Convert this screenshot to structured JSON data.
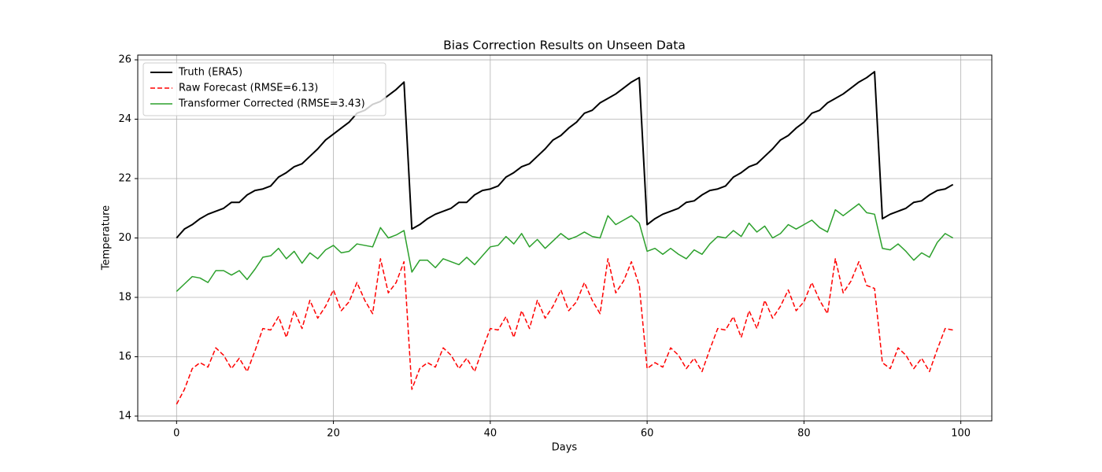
{
  "chart_data": {
    "type": "line",
    "title": "Bias Correction Results on Unseen Data",
    "xlabel": "Days",
    "ylabel": "Temperature",
    "x": [
      0,
      1,
      2,
      3,
      4,
      5,
      6,
      7,
      8,
      9,
      10,
      11,
      12,
      13,
      14,
      15,
      16,
      17,
      18,
      19,
      20,
      21,
      22,
      23,
      24,
      25,
      26,
      27,
      28,
      29,
      30,
      31,
      32,
      33,
      34,
      35,
      36,
      37,
      38,
      39,
      40,
      41,
      42,
      43,
      44,
      45,
      46,
      47,
      48,
      49,
      50,
      51,
      52,
      53,
      54,
      55,
      56,
      57,
      58,
      59,
      60,
      61,
      62,
      63,
      64,
      65,
      66,
      67,
      68,
      69,
      70,
      71,
      72,
      73,
      74,
      75,
      76,
      77,
      78,
      79,
      80,
      81,
      82,
      83,
      84,
      85,
      86,
      87,
      88,
      89,
      90,
      91,
      92,
      93,
      94,
      95,
      96,
      97,
      98,
      99
    ],
    "series": [
      {
        "name": "Truth (ERA5)",
        "color": "#000000",
        "linestyle": "solid",
        "linewidth": 2,
        "values": [
          20.0,
          20.3,
          20.45,
          20.65,
          20.8,
          20.9,
          21.0,
          21.2,
          21.2,
          21.45,
          21.6,
          21.65,
          21.75,
          22.05,
          22.2,
          22.4,
          22.5,
          22.75,
          23.0,
          23.3,
          23.5,
          23.7,
          23.9,
          24.2,
          24.3,
          24.5,
          24.6,
          24.8,
          25.0,
          25.25,
          20.3,
          20.45,
          20.65,
          20.8,
          20.9,
          21.0,
          21.2,
          21.2,
          21.45,
          21.6,
          21.65,
          21.75,
          22.05,
          22.2,
          22.4,
          22.5,
          22.75,
          23.0,
          23.3,
          23.45,
          23.7,
          23.9,
          24.2,
          24.3,
          24.55,
          24.7,
          24.85,
          25.05,
          25.25,
          25.4,
          20.45,
          20.65,
          20.8,
          20.9,
          21.0,
          21.2,
          21.25,
          21.45,
          21.6,
          21.65,
          21.75,
          22.05,
          22.2,
          22.4,
          22.5,
          22.75,
          23.0,
          23.3,
          23.45,
          23.7,
          23.9,
          24.2,
          24.3,
          24.55,
          24.7,
          24.85,
          25.05,
          25.25,
          25.4,
          25.6,
          20.65,
          20.8,
          20.9,
          21.0,
          21.2,
          21.25,
          21.45,
          21.6,
          21.65,
          21.8
        ]
      },
      {
        "name": "Raw Forecast (RMSE=6.13)",
        "color": "#ff0000",
        "linestyle": "dashed",
        "linewidth": 1.5,
        "values": [
          14.4,
          14.9,
          15.6,
          15.8,
          15.65,
          16.3,
          16.05,
          15.6,
          15.95,
          15.5,
          16.2,
          16.95,
          16.9,
          17.35,
          16.65,
          17.55,
          16.95,
          17.9,
          17.3,
          17.7,
          18.25,
          17.55,
          17.85,
          18.5,
          17.9,
          17.45,
          19.3,
          18.15,
          18.5,
          19.2,
          14.9,
          15.6,
          15.8,
          15.65,
          16.3,
          16.05,
          15.6,
          15.95,
          15.5,
          16.25,
          16.95,
          16.9,
          17.35,
          16.65,
          17.55,
          16.95,
          17.9,
          17.3,
          17.7,
          18.25,
          17.55,
          17.85,
          18.5,
          17.9,
          17.45,
          19.3,
          18.15,
          18.55,
          19.2,
          18.4,
          15.6,
          15.8,
          15.65,
          16.3,
          16.05,
          15.6,
          15.95,
          15.5,
          16.25,
          16.95,
          16.9,
          17.35,
          16.65,
          17.55,
          16.95,
          17.9,
          17.3,
          17.7,
          18.25,
          17.55,
          17.85,
          18.5,
          17.9,
          17.45,
          19.3,
          18.15,
          18.55,
          19.2,
          18.4,
          18.3,
          15.8,
          15.6,
          16.3,
          16.05,
          15.6,
          15.95,
          15.5,
          16.25,
          16.95,
          16.9
        ]
      },
      {
        "name": "Transformer Corrected (RMSE=3.43)",
        "color": "#2ca02c",
        "linestyle": "solid",
        "linewidth": 1.5,
        "values": [
          18.2,
          18.45,
          18.7,
          18.65,
          18.5,
          18.9,
          18.9,
          18.75,
          18.9,
          18.6,
          18.95,
          19.35,
          19.4,
          19.65,
          19.3,
          19.55,
          19.15,
          19.5,
          19.3,
          19.6,
          19.75,
          19.5,
          19.55,
          19.8,
          19.75,
          19.7,
          20.35,
          20.0,
          20.1,
          20.25,
          18.85,
          19.25,
          19.25,
          19.0,
          19.3,
          19.2,
          19.1,
          19.35,
          19.1,
          19.4,
          19.7,
          19.75,
          20.05,
          19.8,
          20.15,
          19.7,
          19.95,
          19.65,
          19.9,
          20.15,
          19.95,
          20.05,
          20.2,
          20.05,
          20.0,
          20.75,
          20.45,
          20.6,
          20.75,
          20.5,
          19.55,
          19.65,
          19.45,
          19.65,
          19.45,
          19.3,
          19.6,
          19.45,
          19.8,
          20.05,
          20.0,
          20.25,
          20.05,
          20.5,
          20.2,
          20.4,
          20.0,
          20.15,
          20.45,
          20.3,
          20.45,
          20.6,
          20.35,
          20.2,
          20.95,
          20.75,
          20.95,
          21.15,
          20.85,
          20.8,
          19.65,
          19.6,
          19.8,
          19.55,
          19.25,
          19.5,
          19.35,
          19.85,
          20.15,
          20.0
        ]
      }
    ],
    "xlim": [
      -4.95,
      103.95
    ],
    "xticks": [
      0,
      20,
      40,
      60,
      80,
      100
    ],
    "ylim": [
      13.84,
      26.16
    ],
    "yticks": [
      14,
      16,
      18,
      20,
      22,
      24,
      26
    ],
    "grid": true,
    "legend": "upper left"
  }
}
